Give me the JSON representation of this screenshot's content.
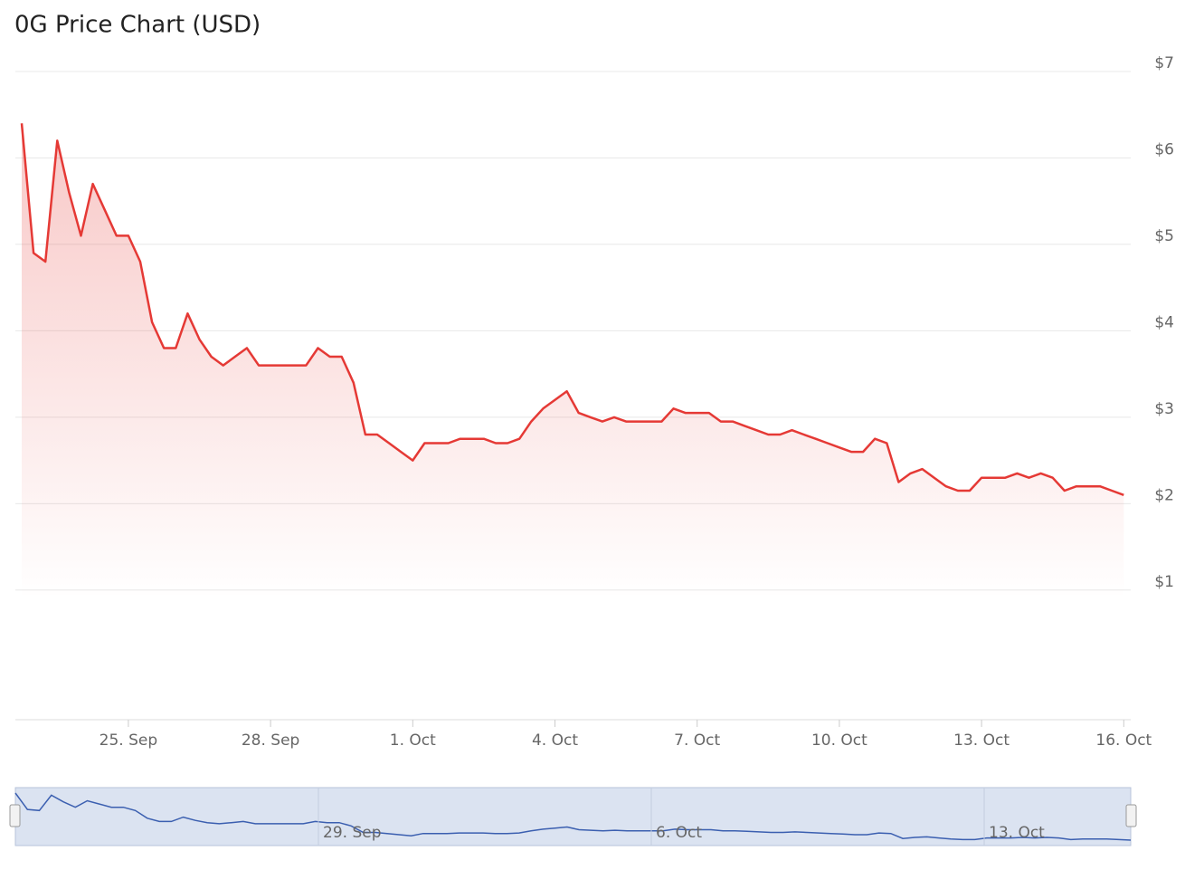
{
  "chart_data": {
    "type": "line",
    "title": "0G Price Chart (USD)",
    "categories": [
      null,
      null,
      null,
      null,
      null,
      null,
      null,
      null,
      null,
      "25. Sep",
      null,
      null,
      null,
      null,
      null,
      null,
      null,
      null,
      null,
      null,
      null,
      "28. Sep",
      null,
      null,
      null,
      null,
      null,
      null,
      null,
      null,
      null,
      null,
      null,
      "1. Oct",
      null,
      null,
      null,
      null,
      null,
      null,
      null,
      null,
      null,
      null,
      null,
      "4. Oct",
      null,
      null,
      null,
      null,
      null,
      null,
      null,
      null,
      null,
      null,
      null,
      "7. Oct",
      null,
      null,
      null,
      null,
      null,
      null,
      null,
      null,
      null,
      null,
      null,
      "10. Oct",
      null,
      null,
      null,
      null,
      null,
      null,
      null,
      null,
      null,
      null,
      null,
      "13. Oct",
      null,
      null,
      null,
      null,
      null,
      null,
      null,
      null,
      null,
      null,
      null,
      "16. Oct"
    ],
    "series": [
      {
        "name": "0G",
        "color": "#e53935",
        "values": [
          6.4,
          4.9,
          4.8,
          6.2,
          5.6,
          5.1,
          5.7,
          5.4,
          5.1,
          5.1,
          4.8,
          4.1,
          3.8,
          3.8,
          4.2,
          3.9,
          3.7,
          3.6,
          3.7,
          3.8,
          3.6,
          3.6,
          3.6,
          3.6,
          3.6,
          3.8,
          3.7,
          3.7,
          3.4,
          2.8,
          2.8,
          2.7,
          2.6,
          2.5,
          2.7,
          2.7,
          2.7,
          2.75,
          2.75,
          2.75,
          2.7,
          2.7,
          2.75,
          2.95,
          3.1,
          3.2,
          3.3,
          3.05,
          3.0,
          2.95,
          3.0,
          2.95,
          2.95,
          2.95,
          2.95,
          3.1,
          3.05,
          3.05,
          3.05,
          2.95,
          2.95,
          2.9,
          2.85,
          2.8,
          2.8,
          2.85,
          2.8,
          2.75,
          2.7,
          2.65,
          2.6,
          2.6,
          2.75,
          2.7,
          2.25,
          2.35,
          2.4,
          2.3,
          2.2,
          2.15,
          2.15,
          2.3,
          2.3,
          2.3,
          2.35,
          2.3,
          2.35,
          2.3,
          2.15,
          2.2,
          2.2,
          2.2,
          2.15,
          2.1
        ]
      }
    ],
    "ylim": [
      -0.5,
      7
    ],
    "yticks": [
      {
        "value": 1,
        "label": "$1"
      },
      {
        "value": 2,
        "label": "$2"
      },
      {
        "value": 3,
        "label": "$3"
      },
      {
        "value": 4,
        "label": "$4"
      },
      {
        "value": 5,
        "label": "$5"
      },
      {
        "value": 6,
        "label": "$6"
      },
      {
        "value": 7,
        "label": "$7"
      }
    ],
    "grid": true,
    "navigator": {
      "labels": [
        "29. Sep",
        "6. Oct",
        "13. Oct"
      ]
    }
  }
}
